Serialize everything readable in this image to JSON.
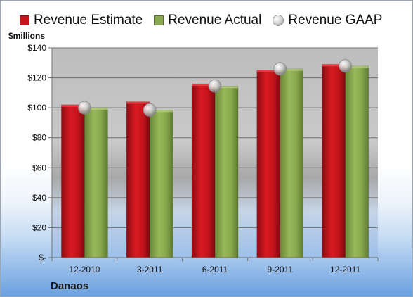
{
  "chart_data": {
    "type": "bar",
    "categories": [
      "12-2010",
      "3-2011",
      "6-2011",
      "9-2011",
      "12-2011"
    ],
    "series": [
      {
        "name": "Revenue Estimate",
        "type": "bar",
        "color": "#c8141c",
        "values": [
          102,
          104,
          116,
          125,
          129
        ]
      },
      {
        "name": "Revenue Actual",
        "type": "bar",
        "color": "#8aa84e",
        "values": [
          100,
          98.5,
          114.5,
          126,
          128
        ]
      },
      {
        "name": "Revenue GAAP",
        "type": "marker",
        "color": "#c0c0c0",
        "values": [
          100,
          98.5,
          114.5,
          126,
          128
        ]
      }
    ],
    "ylabel": "$millions",
    "ylim": [
      0,
      140
    ],
    "yticks": [
      0,
      20,
      40,
      60,
      80,
      100,
      120,
      140
    ],
    "ytick_labels": [
      "$-",
      "$20",
      "$40",
      "$60",
      "$80",
      "$100",
      "$120",
      "$140"
    ],
    "grid": true,
    "legend_position": "top"
  },
  "brand": "Danaos"
}
